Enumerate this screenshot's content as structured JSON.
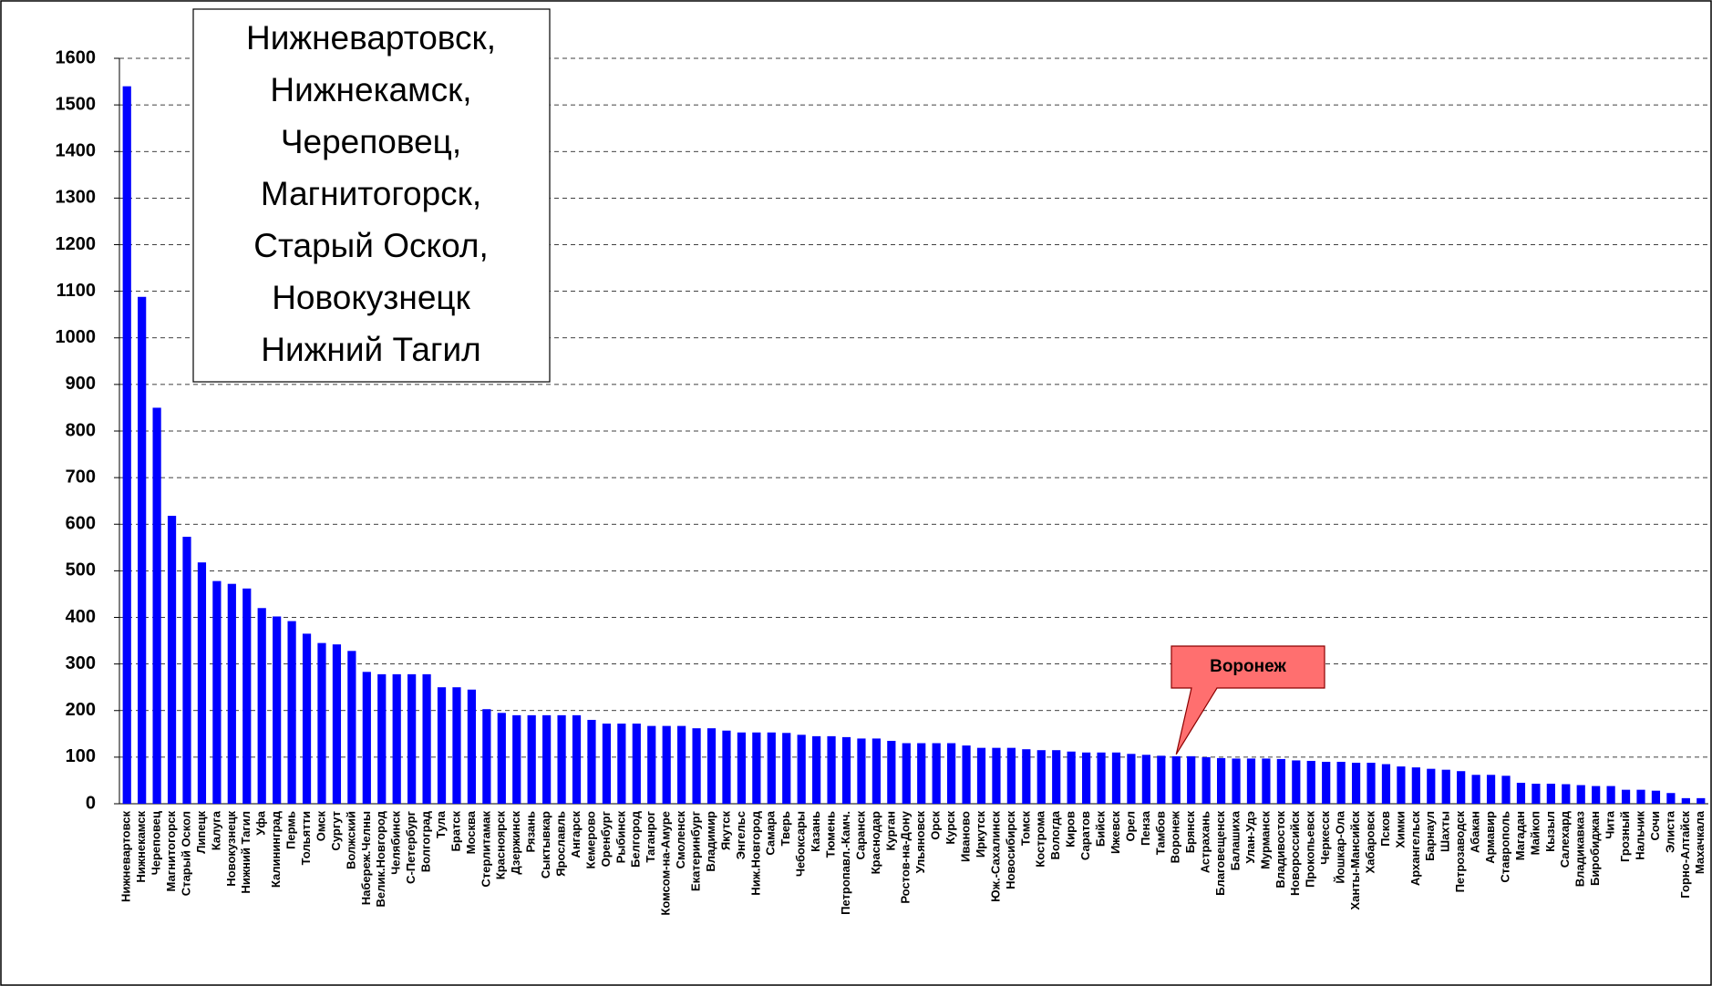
{
  "chart_data": {
    "type": "bar",
    "categories": [
      "Нижневартовск",
      "Нижнекамск",
      "Череповец",
      "Магнитогорск",
      "Старый Оскол",
      "Липецк",
      "Калуга",
      "Новокузнецк",
      "Нижний Тагил",
      "Уфа",
      "Калининград",
      "Пермь",
      "Тольятти",
      "Омск",
      "Сургут",
      "Волжский",
      "Набереж.Челны",
      "Велик.Новгород",
      "Челябинск",
      "С-Петербург",
      "Волгоград",
      "Тула",
      "Братск",
      "Москва",
      "Стерлитамак",
      "Красноярск",
      "Дзержинск",
      "Рязань",
      "Сыктывкар",
      "Ярославль",
      "Ангарск",
      "Кемерово",
      "Оренбург",
      "Рыбинск",
      "Белгород",
      "Таганрог",
      "Комсом-на-Амуре",
      "Смоленск",
      "Екатеринбург",
      "Владимир",
      "Якутск",
      "Энгельс",
      "Ниж.Новгород",
      "Самара",
      "Тверь",
      "Чебоксары",
      "Казань",
      "Тюмень",
      "Петропавл.-Камч.",
      "Саранск",
      "Краснодар",
      "Курган",
      "Ростов-на-Дону",
      "Ульяновск",
      "Орск",
      "Курск",
      "Иваново",
      "Иркутск",
      "Юж.-Сахалинск",
      "Новосибирск",
      "Томск",
      "Кострома",
      "Вологда",
      "Киров",
      "Саратов",
      "Бийск",
      "Ижевск",
      "Орел",
      "Пенза",
      "Тамбов",
      "Воронеж",
      "Брянск",
      "Астрахань",
      "Благовещенск",
      "Балашиха",
      "Улан-Удэ",
      "Мурманск",
      "Владивосток",
      "Новороссийск",
      "Прокопьевск",
      "Черкесск",
      "Йошкар-Ола",
      "Ханты-Мансийск",
      "Хабаровск",
      "Псков",
      "Химки",
      "Архангельск",
      "Барнаул",
      "Шахты",
      "Петрозаводск",
      "Абакан",
      "Армавир",
      "Ставрополь",
      "Магадан",
      "Майкоп",
      "Кызыл",
      "Салехард",
      "Владикавказ",
      "Биробиджан",
      "Чита",
      "Грозный",
      "Нальчик",
      "Сочи",
      "Элиста",
      "Горно-Алтайск",
      "Махачкала"
    ],
    "values": [
      1540,
      1088,
      850,
      618,
      573,
      518,
      478,
      472,
      462,
      420,
      402,
      392,
      365,
      345,
      342,
      328,
      283,
      278,
      278,
      278,
      278,
      250,
      250,
      245,
      203,
      195,
      190,
      190,
      190,
      190,
      190,
      180,
      172,
      172,
      172,
      167,
      167,
      167,
      162,
      162,
      157,
      153,
      153,
      153,
      152,
      148,
      145,
      145,
      143,
      140,
      140,
      135,
      130,
      130,
      130,
      130,
      125,
      120,
      120,
      120,
      117,
      115,
      115,
      112,
      110,
      110,
      110,
      107,
      105,
      103,
      102,
      102,
      100,
      98,
      97,
      97,
      97,
      96,
      93,
      92,
      90,
      90,
      88,
      88,
      85,
      80,
      78,
      75,
      73,
      70,
      62,
      62,
      60,
      45,
      43,
      43,
      42,
      40,
      38,
      38,
      30,
      30,
      28,
      23,
      12,
      12
    ],
    "color": "#0000ff",
    "ylim": [
      0,
      1600
    ],
    "yticks": [
      0,
      100,
      200,
      300,
      400,
      500,
      600,
      700,
      800,
      900,
      1000,
      1100,
      1200,
      1300,
      1400,
      1500,
      1600
    ],
    "grid": true,
    "note_lines": [
      "Нижневартовск,",
      "Нижнекамск,",
      "Череповец,",
      "Магнитогорск,",
      "Старый Оскол,",
      "Новокузнецк",
      "Нижний Тагил"
    ],
    "callout": "Воронеж"
  }
}
